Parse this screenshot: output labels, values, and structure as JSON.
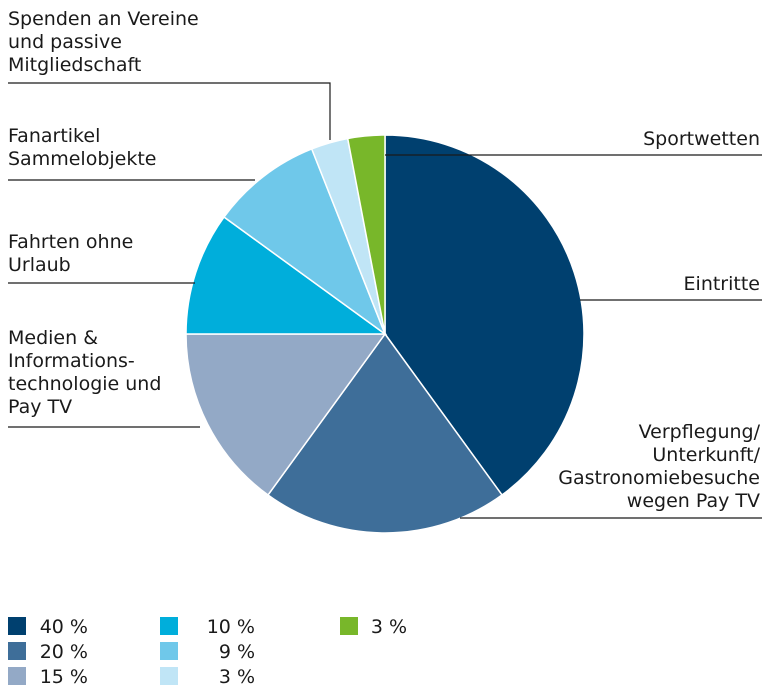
{
  "chart_data": {
    "type": "pie",
    "categories": [
      [
        "Eintritte"
      ],
      [
        "Verpflegung/",
        "Unterkunft/",
        "Gastronomiebesuche",
        "wegen Pay TV"
      ],
      [
        "Medien &",
        "Informations-",
        "technologie und",
        "Pay TV"
      ],
      [
        "Fahrten ohne",
        "Urlaub"
      ],
      [
        "Fanartikel",
        "Sammelobjekte"
      ],
      [
        "Spenden an Vereine",
        "und passive",
        "Mitgliedschaft"
      ],
      [
        "Sportwetten"
      ]
    ],
    "values": [
      40,
      20,
      15,
      10,
      9,
      3,
      3
    ],
    "value_labels": [
      "40 %",
      "20 %",
      "15 %",
      "10 %",
      "9 %",
      "3 %",
      "3 %"
    ],
    "colors": [
      "#00406f",
      "#3e6e99",
      "#93a9c6",
      "#00aedb",
      "#6fc8ea",
      "#c0e5f6",
      "#78b72a"
    ]
  }
}
